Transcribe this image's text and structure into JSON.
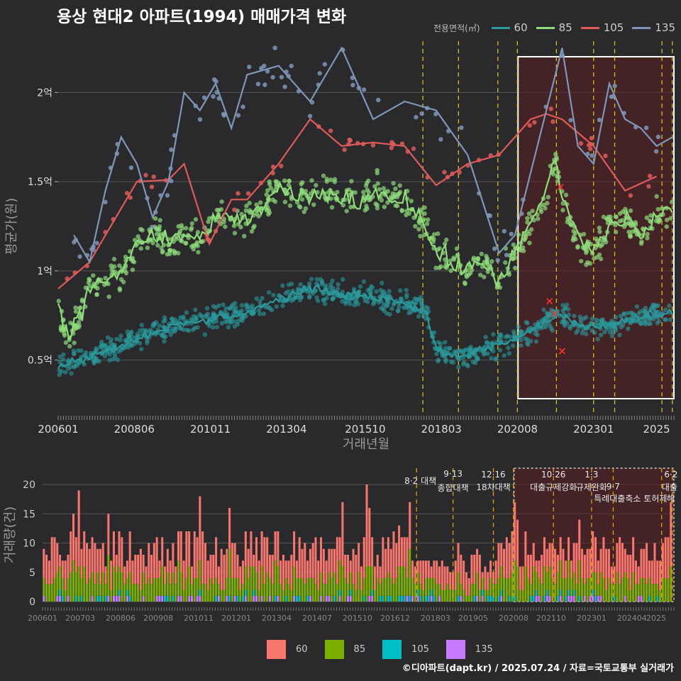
{
  "title": "용상 현대2 아파트(1994) 매매가격 변화",
  "credit": "©디아파트(dapt.kr) / 2025.07.24 / 자료=국토교통부 실거래가",
  "legend_top": {
    "title": "전용면적(㎡)",
    "items": [
      {
        "label": "60",
        "color": "#2a9a9c"
      },
      {
        "label": "85",
        "color": "#8fdc7a"
      },
      {
        "label": "105",
        "color": "#e05a5a"
      },
      {
        "label": "135",
        "color": "#7f96b8"
      }
    ]
  },
  "legend_bottom": {
    "items": [
      {
        "label": "60",
        "color": "#f8766d"
      },
      {
        "label": "85",
        "color": "#7cae00"
      },
      {
        "label": "105",
        "color": "#00bfc4"
      },
      {
        "label": "135",
        "color": "#c77cff"
      }
    ]
  },
  "chart_data": [
    {
      "type": "line",
      "xlabel": "거래년월",
      "ylabel": "평균가(원)",
      "x_ticks": [
        "200601",
        "200806",
        "201011",
        "201304",
        "201510",
        "201803",
        "202008",
        "202301",
        "2025"
      ],
      "y_ticks": [
        "0.5억",
        "1억",
        "1.5억",
        "2억"
      ],
      "ylim": [
        0.2,
        2.3
      ],
      "y_unit": "억",
      "grid": true,
      "policy_lines": [
        2017.58,
        2018.71,
        2019.96,
        2020.58,
        2021.82,
        2023.0,
        2023.67,
        2025.17,
        2025.5
      ],
      "highlight_range": [
        2020.6,
        2025.55
      ],
      "series": [
        {
          "name": "60",
          "color": "#2a9a9c",
          "x": [
            2006.0,
            2007.0,
            2008.0,
            2009.0,
            2010.0,
            2011.0,
            2012.0,
            2013.0,
            2014.0,
            2015.0,
            2016.0,
            2017.0,
            2017.7,
            2018.0,
            2018.5,
            2019.0,
            2019.5,
            2020.0,
            2020.5,
            2021.0,
            2021.5,
            2022.0,
            2022.5,
            2023.0,
            2023.5,
            2024.0,
            2024.5,
            2025.0,
            2025.5
          ],
          "y": [
            0.47,
            0.52,
            0.58,
            0.66,
            0.7,
            0.73,
            0.77,
            0.84,
            0.9,
            0.87,
            0.86,
            0.82,
            0.78,
            0.55,
            0.52,
            0.53,
            0.56,
            0.58,
            0.62,
            0.66,
            0.72,
            0.75,
            0.7,
            0.68,
            0.7,
            0.72,
            0.74,
            0.75,
            0.76
          ]
        },
        {
          "name": "85",
          "color": "#8fdc7a",
          "x": [
            2006.0,
            2006.3,
            2006.6,
            2007.0,
            2007.5,
            2008.0,
            2008.5,
            2009.0,
            2009.5,
            2010.0,
            2010.5,
            2011.0,
            2011.5,
            2012.0,
            2012.5,
            2013.0,
            2013.5,
            2014.0,
            2014.5,
            2015.0,
            2015.5,
            2016.0,
            2016.5,
            2017.0,
            2017.5,
            2018.0,
            2018.5,
            2019.0,
            2019.5,
            2020.0,
            2020.5,
            2021.0,
            2021.5,
            2021.8,
            2022.0,
            2022.5,
            2023.0,
            2023.5,
            2024.0,
            2024.5,
            2025.0,
            2025.5
          ],
          "y": [
            0.78,
            0.62,
            0.72,
            0.9,
            0.95,
            1.0,
            1.15,
            1.2,
            1.15,
            1.2,
            1.18,
            1.3,
            1.28,
            1.3,
            1.35,
            1.45,
            1.42,
            1.4,
            1.45,
            1.4,
            1.38,
            1.45,
            1.42,
            1.4,
            1.3,
            1.1,
            1.05,
            1.0,
            1.05,
            0.95,
            1.1,
            1.25,
            1.45,
            1.65,
            1.4,
            1.2,
            1.1,
            1.25,
            1.3,
            1.2,
            1.3,
            1.35
          ]
        },
        {
          "name": "105",
          "color": "#e05a5a",
          "x": [
            2006.0,
            2007.0,
            2008.5,
            2009.5,
            2010.0,
            2010.8,
            2011.5,
            2012.0,
            2013.0,
            2014.0,
            2015.0,
            2016.0,
            2017.0,
            2018.0,
            2019.0,
            2020.0,
            2021.0,
            2021.5,
            2022.0,
            2023.0,
            2024.0,
            2025.0
          ],
          "y": [
            0.9,
            1.05,
            1.5,
            1.51,
            1.6,
            1.15,
            1.4,
            1.4,
            1.6,
            1.85,
            1.7,
            1.72,
            1.7,
            1.48,
            1.6,
            1.65,
            1.85,
            1.88,
            1.85,
            1.7,
            1.45,
            1.53
          ]
        },
        {
          "name": "135",
          "color": "#7f96b8",
          "x": [
            2006.5,
            2007.0,
            2007.5,
            2008.0,
            2008.5,
            2009.0,
            2009.5,
            2010.0,
            2010.5,
            2011.0,
            2011.5,
            2012.0,
            2013.0,
            2014.0,
            2015.0,
            2016.0,
            2017.0,
            2018.0,
            2019.0,
            2020.0,
            2020.5,
            2021.0,
            2021.5,
            2022.0,
            2022.5,
            2023.0,
            2023.5,
            2024.0,
            2024.5,
            2025.0,
            2025.5
          ],
          "y": [
            1.2,
            1.05,
            1.45,
            1.75,
            1.6,
            1.3,
            1.5,
            2.0,
            1.9,
            2.05,
            1.8,
            2.1,
            2.15,
            1.95,
            2.25,
            1.85,
            1.95,
            1.9,
            1.65,
            1.1,
            1.2,
            1.55,
            1.9,
            2.25,
            1.7,
            1.6,
            2.05,
            1.85,
            1.8,
            1.7,
            1.75
          ]
        }
      ]
    },
    {
      "type": "bar",
      "ylabel": "거래량(건)",
      "x_ticks": [
        "200601",
        "200703",
        "200806",
        "200908",
        "201011",
        "201201",
        "201304",
        "201407",
        "201510",
        "201612",
        "201803",
        "201905",
        "202008",
        "202110",
        "202301",
        "202404",
        "2025"
      ],
      "y_ticks": [
        "0",
        "5",
        "10",
        "15",
        "20"
      ],
      "ylim": [
        0,
        20
      ],
      "grid": true,
      "stacked": true,
      "series_names": [
        "60",
        "85",
        "105",
        "135"
      ],
      "highlight_range": [
        2020.6,
        2025.55
      ],
      "annotations": [
        {
          "x": 2017.58,
          "label": "8·2 대책"
        },
        {
          "x": 2018.71,
          "label": "9·13"
        },
        {
          "x": 2018.71,
          "label": "종합대책"
        },
        {
          "x": 2019.96,
          "label": "12·16"
        },
        {
          "x": 2019.96,
          "label": "18차대책"
        },
        {
          "x": 2021.82,
          "label": "10·26"
        },
        {
          "x": 2021.82,
          "label": "대출규제강화"
        },
        {
          "x": 2023.0,
          "label": "1·3"
        },
        {
          "x": 2023.0,
          "label": "규제완화"
        },
        {
          "x": 2023.67,
          "label": "9·7"
        },
        {
          "x": 2023.67,
          "label": "특례대출축소 토허제"
        },
        {
          "x": 2025.46,
          "label": "6·2"
        },
        {
          "x": 2025.46,
          "label": "대출"
        },
        {
          "x": 2025.46,
          "label": "해"
        }
      ]
    }
  ]
}
